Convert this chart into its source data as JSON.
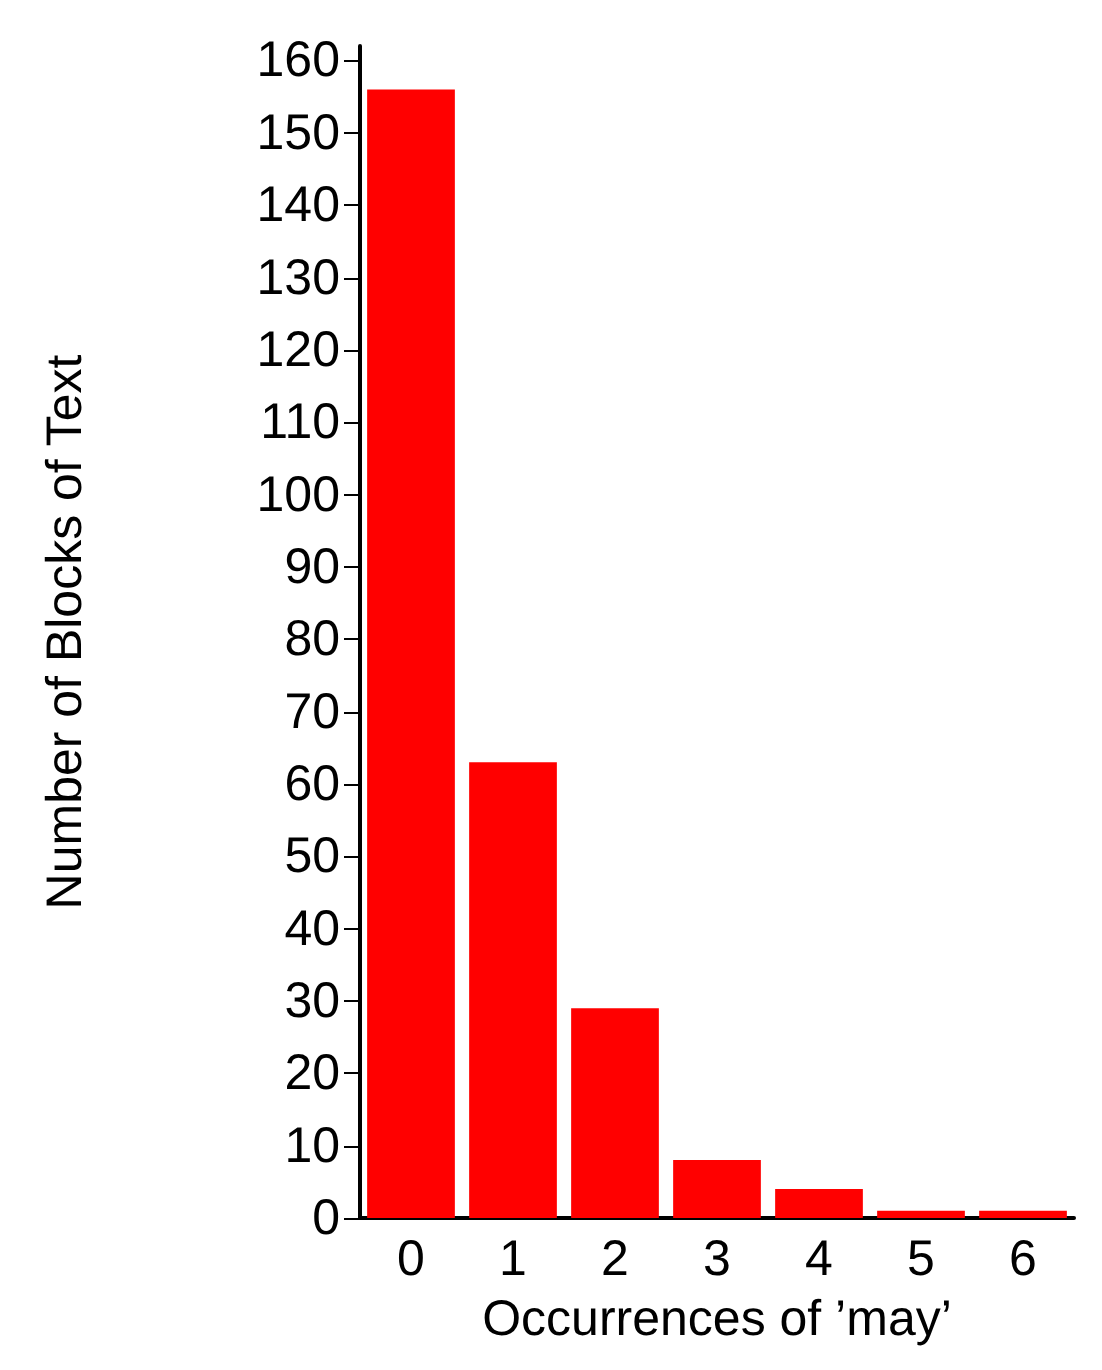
{
  "chart_data": {
    "type": "bar",
    "xlabel": "Occurrences of ’may’",
    "ylabel": "Number of Blocks of Text",
    "categories": [
      "0",
      "1",
      "2",
      "3",
      "4",
      "5",
      "6"
    ],
    "values": [
      156,
      63,
      29,
      8,
      4,
      1,
      1
    ],
    "color": "#ff0000",
    "ylim": [
      0,
      162
    ],
    "yticks": [
      0,
      10,
      20,
      30,
      40,
      50,
      60,
      70,
      80,
      90,
      100,
      110,
      120,
      130,
      140,
      150,
      160
    ]
  }
}
